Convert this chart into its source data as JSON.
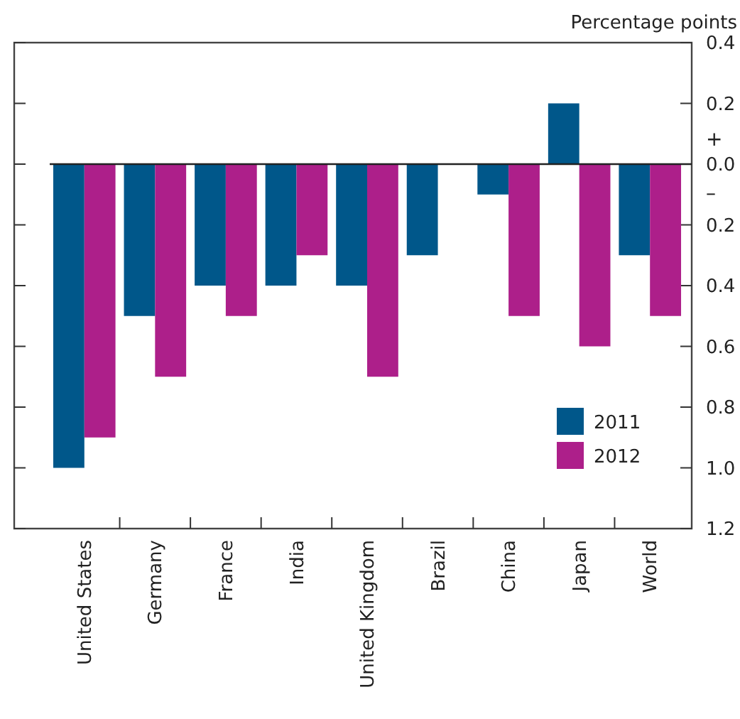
{
  "chart_data": {
    "type": "bar",
    "ylabel": "Percentage points",
    "categories": [
      "United States",
      "Germany",
      "France",
      "India",
      "United Kingdom",
      "Brazil",
      "China",
      "Japan",
      "World"
    ],
    "series": [
      {
        "name": "2011",
        "color": "#00578a",
        "values": [
          -1.0,
          -0.5,
          -0.4,
          -0.4,
          -0.4,
          -0.3,
          -0.1,
          0.2,
          -0.3
        ]
      },
      {
        "name": "2012",
        "color": "#ad1f8a",
        "values": [
          -0.9,
          -0.7,
          -0.5,
          -0.3,
          -0.7,
          null,
          -0.5,
          -0.6,
          -0.5
        ]
      }
    ],
    "ylim": [
      -1.2,
      0.4
    ],
    "yticks": [
      {
        "value": 0.4,
        "label": "0.4"
      },
      {
        "value": 0.2,
        "label": "0.2"
      },
      {
        "value": 0,
        "label": "0.0"
      },
      {
        "value": -0.2,
        "label": "0.2"
      },
      {
        "value": -0.4,
        "label": "0.4"
      },
      {
        "value": -0.6,
        "label": "0.6"
      },
      {
        "value": -0.8,
        "label": "0.8"
      },
      {
        "value": -1.0,
        "label": "1.0"
      },
      {
        "value": -1.2,
        "label": "1.2"
      }
    ],
    "annotations": [
      "+",
      "–"
    ],
    "legend": "bottom right"
  }
}
